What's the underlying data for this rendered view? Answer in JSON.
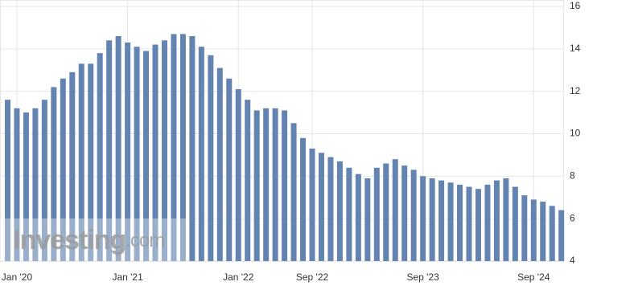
{
  "chart_data": {
    "type": "bar",
    "categories": [
      null,
      "Jan '20",
      null,
      null,
      null,
      null,
      null,
      null,
      null,
      null,
      null,
      null,
      null,
      "Jan '21",
      null,
      null,
      null,
      null,
      null,
      null,
      null,
      null,
      null,
      null,
      null,
      "Jan '22",
      null,
      null,
      null,
      null,
      null,
      null,
      null,
      "Sep '22",
      null,
      null,
      null,
      null,
      null,
      null,
      null,
      null,
      null,
      null,
      null,
      "Sep '23",
      null,
      null,
      null,
      null,
      null,
      null,
      null,
      null,
      null,
      null,
      null,
      "Sep '24",
      null,
      null,
      null
    ],
    "values": [
      11.6,
      11.2,
      11.0,
      11.2,
      11.6,
      12.2,
      12.6,
      12.9,
      13.3,
      13.3,
      13.8,
      14.4,
      14.6,
      14.3,
      14.1,
      13.9,
      14.2,
      14.4,
      14.7,
      14.7,
      14.6,
      14.1,
      13.7,
      13.1,
      12.6,
      12.1,
      11.6,
      11.1,
      11.2,
      11.2,
      11.1,
      10.5,
      9.8,
      9.3,
      9.1,
      8.9,
      8.7,
      8.4,
      8.1,
      7.9,
      8.4,
      8.6,
      8.8,
      8.5,
      8.3,
      8.0,
      7.9,
      7.8,
      7.7,
      7.6,
      7.5,
      7.4,
      7.6,
      7.8,
      7.9,
      7.5,
      7.1,
      6.9,
      6.8,
      6.6,
      6.4
    ],
    "color": "#6384b0",
    "ylim": [
      4,
      16
    ],
    "yticks": [
      4,
      6,
      8,
      10,
      12,
      14,
      16
    ],
    "grid": true,
    "watermark": {
      "brand": "Investing",
      "domain": ".com"
    }
  }
}
